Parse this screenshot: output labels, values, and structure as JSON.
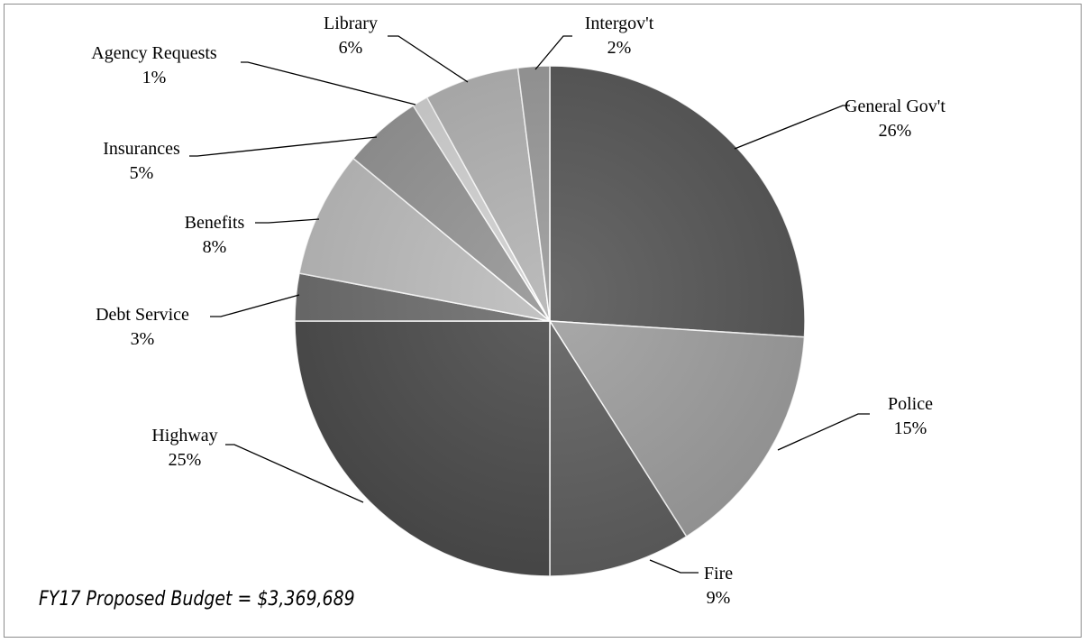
{
  "chart_data": {
    "type": "pie",
    "title": "",
    "start_angle": "12 o'clock",
    "direction": "clockwise",
    "labels_outside_with_leader_lines": true,
    "slices": [
      {
        "name": "General Gov't",
        "value": 26,
        "label": "26%",
        "color": "#585858"
      },
      {
        "name": "Police",
        "value": 15,
        "label": "15%",
        "color": "#a0a0a0"
      },
      {
        "name": "Fire",
        "value": 9,
        "label": "9%",
        "color": "#606060"
      },
      {
        "name": "Highway",
        "value": 25,
        "label": "25%",
        "color": "#4d4d4d"
      },
      {
        "name": "Debt Service",
        "value": 3,
        "label": "3%",
        "color": "#6e6e6e"
      },
      {
        "name": "Benefits",
        "value": 8,
        "label": "8%",
        "color": "#bdbdbd"
      },
      {
        "name": "Insurances",
        "value": 5,
        "label": "5%",
        "color": "#959595"
      },
      {
        "name": "Agency Requests",
        "value": 1,
        "label": "1%",
        "color": "#d2d2d2"
      },
      {
        "name": "Library",
        "value": 6,
        "label": "6%",
        "color": "#b3b3b3"
      },
      {
        "name": "Intergov't",
        "value": 2,
        "label": "2%",
        "color": "#9a9a9a"
      }
    ]
  },
  "budget_note": "FY17 Proposed Budget = $3,369,689"
}
